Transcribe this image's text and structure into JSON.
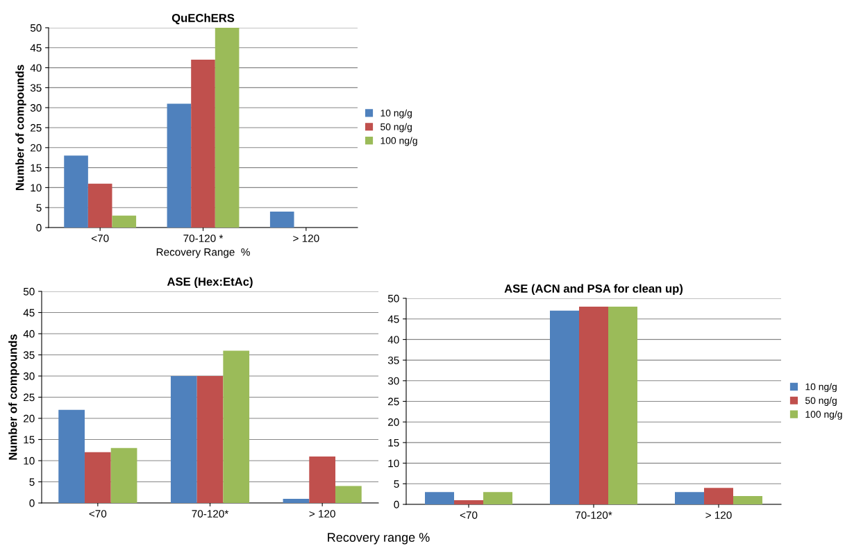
{
  "chart_data": [
    {
      "type": "bar",
      "title": "QuEChERS",
      "xlabel": "Recovery Range  %",
      "ylabel": "Number of compounds",
      "categories": [
        "<70",
        "70-120 *",
        "> 120"
      ],
      "series": [
        {
          "name": "10 ng/g",
          "color": "#4f81bd",
          "values": [
            18,
            31,
            4
          ]
        },
        {
          "name": "50 ng/g",
          "color": "#c0504d",
          "values": [
            11,
            42,
            0
          ]
        },
        {
          "name": "100 ng/g",
          "color": "#9bbb59",
          "values": [
            3,
            50,
            0
          ]
        }
      ],
      "ylim": [
        0,
        50
      ],
      "yticks": [
        0,
        5,
        10,
        15,
        20,
        25,
        30,
        35,
        40,
        45,
        50
      ],
      "grid": "y",
      "legend": "right"
    },
    {
      "type": "bar",
      "title": "ASE (Hex:EtAc)",
      "xlabel": "Recovery range %",
      "ylabel": "Number of compounds",
      "categories": [
        "<70",
        "70-120*",
        "> 120"
      ],
      "series": [
        {
          "color": "#4f81bd",
          "values": [
            22,
            30,
            1
          ]
        },
        {
          "color": "#c0504d",
          "values": [
            12,
            30,
            11
          ]
        },
        {
          "color": "#9bbb59",
          "values": [
            13,
            36,
            4
          ]
        }
      ],
      "ylim": [
        0,
        50
      ],
      "yticks": [
        0,
        5,
        10,
        15,
        20,
        25,
        30,
        35,
        40,
        45,
        50
      ],
      "grid": "y"
    },
    {
      "type": "bar",
      "title": "ASE (ACN and PSA for clean up)",
      "categories": [
        "<70",
        "70-120*",
        "> 120"
      ],
      "series": [
        {
          "name": "10 ng/g",
          "color": "#4f81bd",
          "values": [
            3,
            47,
            3
          ]
        },
        {
          "name": "50 ng/g",
          "color": "#c0504d",
          "values": [
            1,
            48,
            4
          ]
        },
        {
          "name": "100 ng/g",
          "color": "#9bbb59",
          "values": [
            3,
            48,
            2
          ]
        }
      ],
      "ylim": [
        0,
        50
      ],
      "yticks": [
        0,
        5,
        10,
        15,
        20,
        25,
        30,
        35,
        40,
        45,
        50
      ],
      "grid": "y",
      "legend": "right"
    }
  ]
}
